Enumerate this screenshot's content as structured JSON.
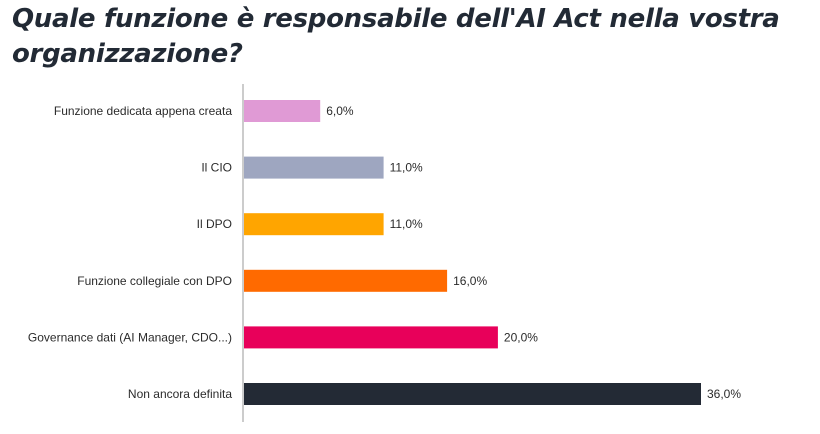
{
  "chart_data": {
    "type": "bar",
    "orientation": "horizontal",
    "title": "Quale funzione è responsabile dell'AI Act nella vostra organizzazione?",
    "categories": [
      "Funzione dedicata appena creata",
      "Il CIO",
      "Il DPO",
      "Funzione collegiale con DPO",
      "Governance dati (AI Manager, CDO...)",
      "Non ancora definita"
    ],
    "values": [
      6.0,
      11.0,
      11.0,
      16.0,
      20.0,
      36.0
    ],
    "value_labels": [
      "6,0%",
      "11,0%",
      "11,0%",
      "16,0%",
      "20,0%",
      "36,0%"
    ],
    "colors": [
      "#e09ad5",
      "#9ea6c0",
      "#ffa500",
      "#ff6a00",
      "#e8005a",
      "#232a35"
    ],
    "xlim": [
      0,
      36
    ],
    "xlabel": "",
    "ylabel": "",
    "grid": false,
    "legend": "none"
  }
}
